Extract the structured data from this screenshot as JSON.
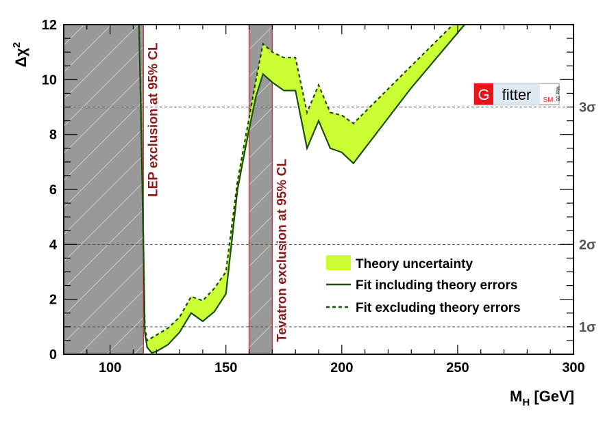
{
  "chart_data": {
    "type": "area",
    "xlabel": "M",
    "xlabel_sub": "H",
    "xlabel_unit": " [GeV]",
    "ylabel": "Δχ",
    "ylabel_sup": "2",
    "xlim": [
      80,
      300
    ],
    "ylim": [
      0,
      12
    ],
    "x_ticks": [
      100,
      150,
      200,
      250,
      300
    ],
    "y_ticks": [
      0,
      2,
      4,
      6,
      8,
      10,
      12
    ],
    "sigma_lines": [
      {
        "y": 1,
        "label": "1σ"
      },
      {
        "y": 4,
        "label": "2σ"
      },
      {
        "y": 9,
        "label": "3σ"
      }
    ],
    "exclusions": [
      {
        "label": "LEP exclusion at 95% CL",
        "x_from": 80,
        "x_to": 114.4
      },
      {
        "label": "Tevatron exclusion at 95% CL",
        "x_from": 160,
        "x_to": 170
      }
    ],
    "series": [
      {
        "name": "Fit including theory errors",
        "style": "solid",
        "color": "#1a4d0a",
        "x": [
          112.5,
          113.5,
          114.4,
          115,
          116,
          118,
          120,
          125,
          130,
          135,
          140,
          145,
          150,
          155,
          160,
          163,
          166,
          170,
          175,
          180,
          185,
          190,
          195,
          200,
          205,
          230,
          253
        ],
        "y": [
          12,
          8,
          4,
          0.8,
          0.25,
          0.05,
          0.1,
          0.35,
          0.8,
          1.5,
          1.2,
          1.55,
          2.2,
          6.0,
          8.2,
          9.4,
          10.2,
          9.9,
          9.6,
          9.6,
          7.5,
          8.5,
          7.5,
          7.35,
          6.95,
          9.7,
          12
        ]
      },
      {
        "name": "Fit excluding theory errors",
        "style": "dashed",
        "color": "#1a4d0a",
        "x": [
          112.5,
          113.5,
          114.4,
          115,
          116,
          118,
          120,
          125,
          130,
          135,
          140,
          145,
          150,
          155,
          160,
          163,
          166,
          170,
          175,
          180,
          185,
          190,
          195,
          200,
          205,
          230,
          248
        ],
        "y": [
          12,
          8,
          4,
          1.0,
          0.5,
          0.6,
          0.7,
          0.95,
          1.35,
          2.1,
          1.95,
          2.4,
          3.0,
          6.3,
          8.6,
          10.0,
          11.3,
          11.0,
          10.8,
          10.8,
          8.8,
          9.8,
          8.8,
          8.7,
          8.4,
          10.5,
          12
        ]
      }
    ],
    "band": {
      "name": "Theory uncertainty",
      "color": "#ccff33",
      "lower_series": 0,
      "upper_series": 1
    },
    "legend": {
      "placement": "center-right",
      "entries": [
        "Theory uncertainty",
        "Fit including theory errors",
        "Fit excluding theory errors"
      ]
    },
    "logo": {
      "letter": "G",
      "word": "fitter",
      "tag": "SM",
      "date": "Mar 09"
    }
  }
}
